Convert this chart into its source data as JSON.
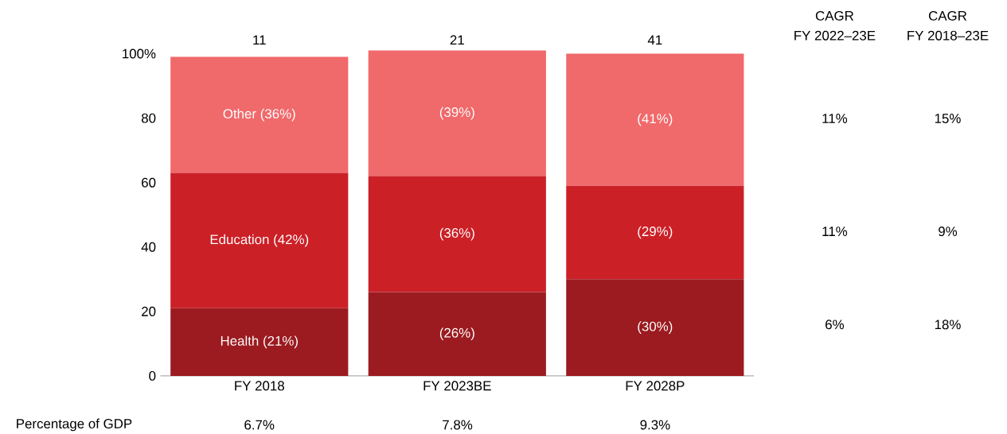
{
  "chart_data": {
    "type": "bar",
    "stacked": true,
    "categories": [
      "FY 2018",
      "FY 2023BE",
      "FY 2028P"
    ],
    "series": [
      {
        "color": "#9b1b20",
        "values": [
          21,
          26,
          30
        ],
        "value_labels": [
          "Health (21%)",
          "(26%)",
          "(30%)"
        ]
      },
      {
        "color": "#cc2027",
        "values": [
          42,
          36,
          29
        ],
        "value_labels": [
          "Education (42%)",
          "(36%)",
          "(29%)"
        ]
      },
      {
        "color": "#f0696b",
        "values": [
          36,
          39,
          41
        ],
        "value_labels": [
          "Other (36%)",
          "(39%)",
          "(41%)"
        ]
      }
    ],
    "ylim": [
      0,
      101
    ],
    "yticks": [
      0,
      20,
      40,
      60,
      80,
      {
        "value": 100,
        "label": "100%"
      }
    ],
    "annotations": [
      {
        "text": "11",
        "x": "FY 2018",
        "y": 100
      },
      {
        "text": "21",
        "x": "FY 2023BE",
        "y": 100
      },
      {
        "text": "41",
        "x": "FY 2028P",
        "y": 100
      },
      "CAGR",
      "FY 2022–23E",
      "CAGR",
      "FY 2018–23E",
      "11%",
      "15%",
      "11%",
      "9%",
      "6%",
      "18%",
      "Percentage of GDP",
      "6.7%",
      "7.8%",
      "9.3%"
    ]
  }
}
